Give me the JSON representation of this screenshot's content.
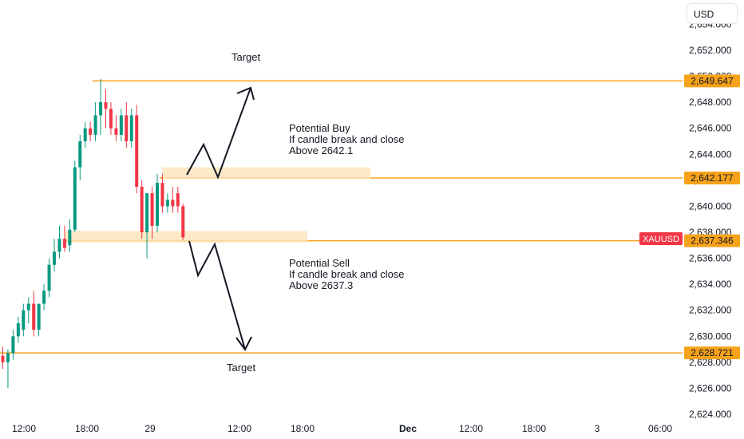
{
  "chart_data": {
    "type": "candlestick",
    "currency": "USD",
    "symbol": "XAUUSD",
    "ylim": [
      2624.0,
      2654.0
    ],
    "y_ticks": [
      "2,624.000",
      "2,626.000",
      "2,628.000",
      "2,630.000",
      "2,632.000",
      "2,634.000",
      "2,636.000",
      "2,638.000",
      "2,640.000",
      "2,642.000",
      "2,644.000",
      "2,646.000",
      "2,648.000",
      "2,650.000",
      "2,652.000",
      "2,654.000"
    ],
    "x_ticks": [
      "12:00",
      "18:00",
      "29",
      "12:00",
      "18:00",
      "Dec",
      "12:00",
      "18:00",
      "3",
      "06:00"
    ],
    "colors": {
      "up": "#089981",
      "down": "#f23645",
      "level": "#f7a21b",
      "zone": "#fde3b8",
      "symbol_badge": "#f23645"
    },
    "price_levels": [
      {
        "value": 2649.647,
        "label": "2,649.647"
      },
      {
        "value": 2642.177,
        "label": "2,642.177"
      },
      {
        "value": 2637.346,
        "label": "2,637.346"
      },
      {
        "value": 2628.721,
        "label": "2,628.721"
      }
    ],
    "zones": [
      {
        "low": 2642.1,
        "high": 2643.0
      },
      {
        "low": 2637.2,
        "high": 2638.1
      }
    ],
    "annotations": {
      "target_top": "Target",
      "target_bottom": "Target",
      "buy_lines": [
        "Potential Buy",
        "If candle break and close",
        "Above 2642.1"
      ],
      "sell_lines": [
        "Potential Sell",
        "If candle break and close",
        "Above 2637.3"
      ]
    },
    "candles": [
      {
        "o": 2628.5,
        "h": 2629.2,
        "l": 2627.5,
        "c": 2628.0
      },
      {
        "o": 2628.0,
        "h": 2629.0,
        "l": 2626.0,
        "c": 2628.7
      },
      {
        "o": 2628.7,
        "h": 2630.5,
        "l": 2628.2,
        "c": 2630.0
      },
      {
        "o": 2630.0,
        "h": 2631.5,
        "l": 2629.5,
        "c": 2631.0
      },
      {
        "o": 2630.5,
        "h": 2632.5,
        "l": 2630.0,
        "c": 2632.0
      },
      {
        "o": 2632.0,
        "h": 2633.0,
        "l": 2631.0,
        "c": 2632.5
      },
      {
        "o": 2632.5,
        "h": 2633.5,
        "l": 2630.0,
        "c": 2630.5
      },
      {
        "o": 2630.5,
        "h": 2632.5,
        "l": 2630.0,
        "c": 2632.5
      },
      {
        "o": 2632.5,
        "h": 2634.0,
        "l": 2632.0,
        "c": 2633.5
      },
      {
        "o": 2633.5,
        "h": 2636.0,
        "l": 2633.0,
        "c": 2635.5
      },
      {
        "o": 2635.5,
        "h": 2637.5,
        "l": 2635.0,
        "c": 2636.5
      },
      {
        "o": 2636.5,
        "h": 2638.5,
        "l": 2636.0,
        "c": 2637.5
      },
      {
        "o": 2637.5,
        "h": 2638.5,
        "l": 2636.5,
        "c": 2636.8
      },
      {
        "o": 2637.0,
        "h": 2639.0,
        "l": 2636.5,
        "c": 2638.2
      },
      {
        "o": 2638.2,
        "h": 2643.5,
        "l": 2638.0,
        "c": 2643.0
      },
      {
        "o": 2643.0,
        "h": 2645.5,
        "l": 2642.0,
        "c": 2645.0
      },
      {
        "o": 2645.0,
        "h": 2646.5,
        "l": 2644.5,
        "c": 2646.0
      },
      {
        "o": 2646.0,
        "h": 2646.5,
        "l": 2645.0,
        "c": 2645.5
      },
      {
        "o": 2645.5,
        "h": 2648.0,
        "l": 2645.0,
        "c": 2647.0
      },
      {
        "o": 2647.0,
        "h": 2649.8,
        "l": 2645.5,
        "c": 2648.0
      },
      {
        "o": 2648.0,
        "h": 2649.0,
        "l": 2646.0,
        "c": 2647.5
      },
      {
        "o": 2647.5,
        "h": 2648.0,
        "l": 2645.5,
        "c": 2646.0
      },
      {
        "o": 2646.0,
        "h": 2647.0,
        "l": 2645.0,
        "c": 2645.5
      },
      {
        "o": 2645.5,
        "h": 2647.5,
        "l": 2645.0,
        "c": 2647.0
      },
      {
        "o": 2647.0,
        "h": 2648.0,
        "l": 2644.5,
        "c": 2645.0
      },
      {
        "o": 2645.0,
        "h": 2647.5,
        "l": 2644.5,
        "c": 2647.0
      },
      {
        "o": 2647.0,
        "h": 2647.8,
        "l": 2641.0,
        "c": 2641.5
      },
      {
        "o": 2641.5,
        "h": 2642.0,
        "l": 2637.5,
        "c": 2638.0
      },
      {
        "o": 2638.0,
        "h": 2641.0,
        "l": 2636.0,
        "c": 2641.0
      },
      {
        "o": 2641.0,
        "h": 2641.5,
        "l": 2637.5,
        "c": 2638.5
      },
      {
        "o": 2638.5,
        "h": 2642.5,
        "l": 2638.0,
        "c": 2641.8
      },
      {
        "o": 2641.8,
        "h": 2642.5,
        "l": 2639.5,
        "c": 2640.0
      },
      {
        "o": 2640.0,
        "h": 2641.0,
        "l": 2639.5,
        "c": 2640.5
      },
      {
        "o": 2640.5,
        "h": 2641.5,
        "l": 2639.5,
        "c": 2640.0
      },
      {
        "o": 2641.0,
        "h": 2641.5,
        "l": 2639.5,
        "c": 2640.0
      },
      {
        "o": 2640.0,
        "h": 2640.2,
        "l": 2637.4,
        "c": 2637.6
      }
    ]
  }
}
